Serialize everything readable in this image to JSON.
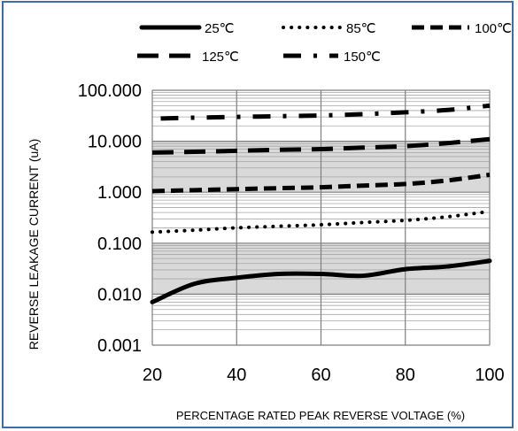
{
  "chart_data": {
    "type": "line",
    "title": "",
    "xlabel": "PERCENTAGE RATED PEAK REVERSE VOLTAGE (%)",
    "ylabel": "REVERSE LEAKAGE CURRENT (uA)",
    "xlim": [
      20,
      100
    ],
    "ylim": [
      0.001,
      100
    ],
    "yscale": "log",
    "x_ticks": [
      "20",
      "40",
      "60",
      "80",
      "100"
    ],
    "y_ticks": [
      "0.001",
      "0.010",
      "0.100",
      "1.000",
      "10.000",
      "100.000"
    ],
    "grid": true,
    "legend_position": "top",
    "series": [
      {
        "name": "25℃",
        "dash": "solid",
        "color": "#000000",
        "x": [
          20,
          30,
          40,
          50,
          60,
          70,
          80,
          90,
          100
        ],
        "y": [
          0.007,
          0.016,
          0.021,
          0.025,
          0.025,
          0.023,
          0.031,
          0.035,
          0.045
        ]
      },
      {
        "name": "85℃",
        "dash": "dotted",
        "color": "#000000",
        "x": [
          20,
          30,
          40,
          50,
          60,
          70,
          80,
          90,
          100
        ],
        "y": [
          0.165,
          0.18,
          0.2,
          0.215,
          0.23,
          0.255,
          0.28,
          0.33,
          0.42
        ]
      },
      {
        "name": "100℃",
        "dash": "dashed",
        "color": "#000000",
        "x": [
          20,
          30,
          40,
          50,
          60,
          70,
          80,
          90,
          100
        ],
        "y": [
          1.05,
          1.1,
          1.15,
          1.2,
          1.25,
          1.35,
          1.45,
          1.7,
          2.2
        ]
      },
      {
        "name": "125℃",
        "dash": "long-dash",
        "color": "#000000",
        "x": [
          20,
          30,
          40,
          50,
          60,
          70,
          80,
          90,
          100
        ],
        "y": [
          6.0,
          6.2,
          6.5,
          6.8,
          7.0,
          7.5,
          8.0,
          9.2,
          11.0
        ]
      },
      {
        "name": "150℃",
        "dash": "dash-dot",
        "color": "#000000",
        "x": [
          22,
          30,
          40,
          50,
          60,
          70,
          80,
          90,
          100
        ],
        "y": [
          28,
          29,
          30,
          31,
          32,
          34,
          37,
          41,
          50
        ]
      }
    ]
  }
}
